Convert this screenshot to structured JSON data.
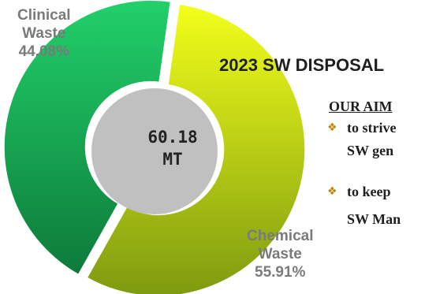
{
  "chart_data": {
    "type": "pie",
    "variant": "donut",
    "title": "2023 SW DISPOSAL",
    "center_text": [
      "60.18",
      "MT"
    ],
    "slices": [
      {
        "label_lines": [
          "Clinical",
          "Waste",
          "44.08%"
        ],
        "value": 44.08,
        "color_light": "#22d16a",
        "color_dark": "#0d7a3a"
      },
      {
        "label_lines": [
          "Chemical",
          "Waste",
          "55.91%"
        ],
        "value": 55.91,
        "color_light": "#f4ff1a",
        "color_dark": "#7d9a10"
      }
    ],
    "center_color": "#c0c0c0"
  },
  "aim": {
    "heading": "OUR AIM",
    "items": [
      {
        "lines": [
          "to strive",
          "SW gen"
        ]
      },
      {
        "lines": [
          "to keep",
          "SW Man"
        ]
      }
    ]
  }
}
